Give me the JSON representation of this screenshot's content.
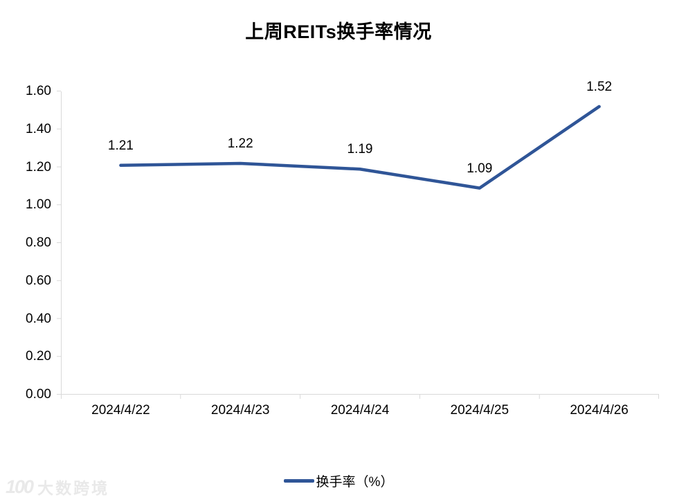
{
  "title": "上周REITs换手率情况",
  "legend": {
    "label": "换手率（%）"
  },
  "watermark": {
    "logo": "100",
    "text": "大数跨境"
  },
  "colors": {
    "line": "#2F5597",
    "axis": "#D9D9D9",
    "text": "#000000",
    "watermark": "#E9E9E9"
  },
  "chart_data": {
    "type": "line",
    "title": "上周REITs换手率情况",
    "categories": [
      "2024/4/22",
      "2024/4/23",
      "2024/4/24",
      "2024/4/25",
      "2024/4/26"
    ],
    "series": [
      {
        "name": "换手率（%）",
        "values": [
          1.21,
          1.22,
          1.19,
          1.09,
          1.52
        ]
      }
    ],
    "data_labels": [
      "1.21",
      "1.22",
      "1.19",
      "1.09",
      "1.52"
    ],
    "xlabel": "",
    "ylabel": "",
    "ylim": [
      0,
      1.6
    ],
    "ytick_step": 0.2,
    "yticks": [
      "0.00",
      "0.20",
      "0.40",
      "0.60",
      "0.80",
      "1.00",
      "1.20",
      "1.40",
      "1.60"
    ],
    "grid": false,
    "legend_position": "bottom"
  }
}
